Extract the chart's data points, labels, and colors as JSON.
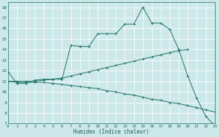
{
  "xlabel": "Humidex (Indice chaleur)",
  "bg_color": "#cce8e8",
  "grid_color": "#ffffff",
  "line_color": "#2a7a6e",
  "curve1_x": [
    0,
    1,
    2,
    3,
    4,
    5,
    6,
    7,
    8,
    9,
    10,
    11,
    12,
    13,
    14,
    15,
    16,
    17,
    18,
    19,
    20,
    21,
    22,
    23
  ],
  "curve1_y": [
    11.9,
    10.8,
    10.8,
    11.1,
    11.2,
    11.2,
    11.2,
    14.4,
    14.3,
    14.3,
    15.5,
    15.5,
    15.5,
    16.4,
    16.4,
    18.0,
    16.5,
    16.5,
    15.9,
    14.0,
    11.5,
    9.4,
    7.7,
    6.8
  ],
  "curve2_x": [
    0,
    1,
    2,
    3,
    4,
    5,
    6,
    7,
    8,
    9,
    10,
    11,
    12,
    13,
    14,
    15,
    16,
    17,
    18,
    19,
    20
  ],
  "curve2_y": [
    11.0,
    11.0,
    11.0,
    11.0,
    11.1,
    11.2,
    11.3,
    11.5,
    11.7,
    11.9,
    12.1,
    12.3,
    12.5,
    12.7,
    12.9,
    13.1,
    13.3,
    13.5,
    13.7,
    13.9,
    14.0
  ],
  "curve3_x": [
    0,
    1,
    2,
    3,
    4,
    5,
    6,
    7,
    8,
    9,
    10,
    11,
    12,
    13,
    14,
    15,
    16,
    17,
    18,
    19,
    20,
    21,
    22,
    23
  ],
  "curve3_y": [
    11.0,
    10.9,
    10.9,
    10.9,
    10.9,
    10.8,
    10.7,
    10.6,
    10.5,
    10.4,
    10.3,
    10.1,
    10.0,
    9.8,
    9.7,
    9.5,
    9.3,
    9.2,
    9.0,
    8.9,
    8.7,
    8.5,
    8.3,
    8.1
  ],
  "xlim": [
    0,
    23
  ],
  "ylim": [
    7,
    18.5
  ],
  "yticks": [
    7,
    8,
    9,
    10,
    11,
    12,
    13,
    14,
    15,
    16,
    17,
    18
  ],
  "xticks": [
    0,
    1,
    2,
    3,
    4,
    5,
    6,
    7,
    8,
    9,
    10,
    11,
    12,
    13,
    14,
    15,
    16,
    17,
    18,
    19,
    20,
    21,
    22,
    23
  ]
}
